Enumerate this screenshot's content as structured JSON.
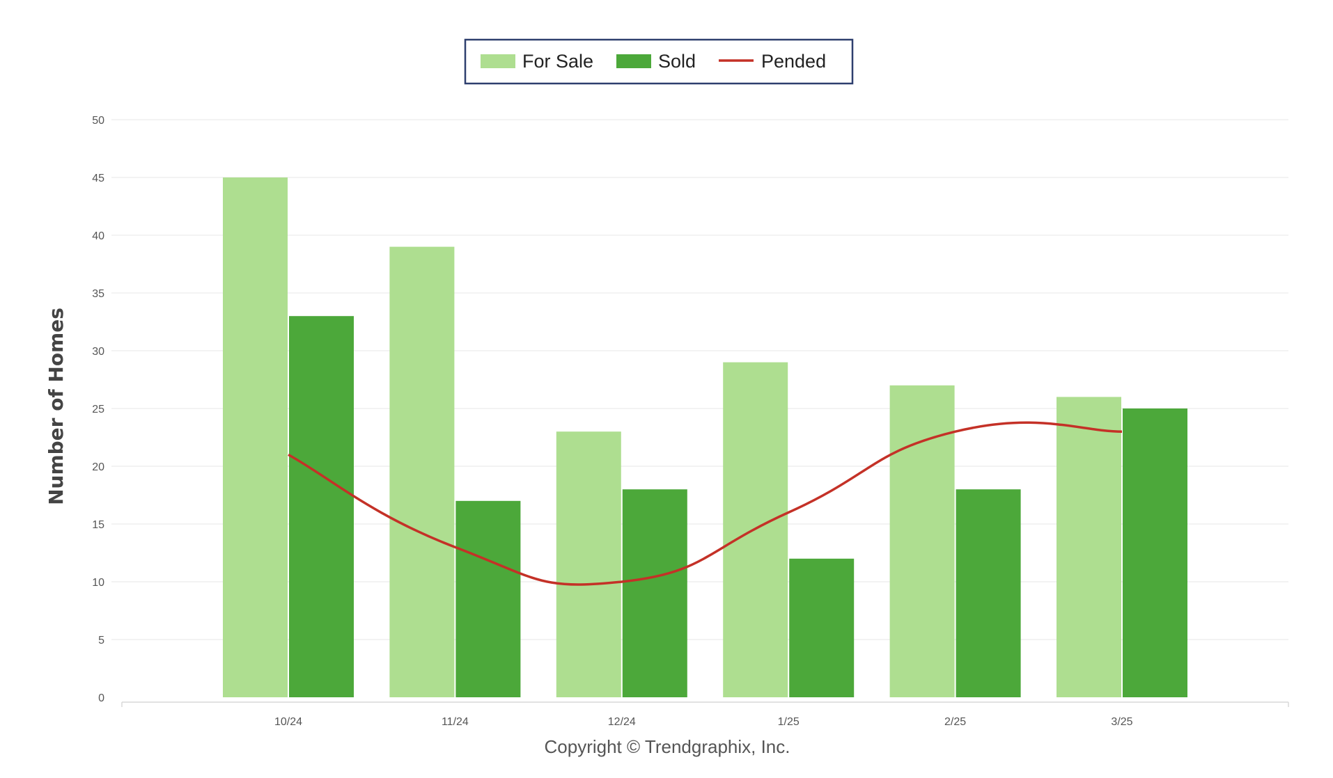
{
  "chart_data": {
    "type": "bar",
    "categories": [
      "10/24",
      "11/24",
      "12/24",
      "1/25",
      "2/25",
      "3/25"
    ],
    "series": [
      {
        "name": "For Sale",
        "type": "bar",
        "color": "#aede90",
        "values": [
          45,
          39,
          23,
          29,
          27,
          26
        ]
      },
      {
        "name": "Sold",
        "type": "bar",
        "color": "#4ca83a",
        "values": [
          33,
          17,
          18,
          12,
          18,
          25
        ]
      },
      {
        "name": "Pended",
        "type": "line",
        "color": "#c43127",
        "values": [
          21,
          13,
          10,
          16,
          23,
          23
        ]
      }
    ],
    "ylabel": "Number of Homes",
    "xlabel": "",
    "ylim": [
      0,
      50
    ],
    "yticks": [
      "0",
      "5",
      "10",
      "15",
      "20",
      "25",
      "30",
      "35",
      "40",
      "45",
      "50"
    ],
    "grid": true,
    "legend_position": "top-center"
  },
  "footer": {
    "copyright": "Copyright © Trendgraphix, Inc."
  }
}
